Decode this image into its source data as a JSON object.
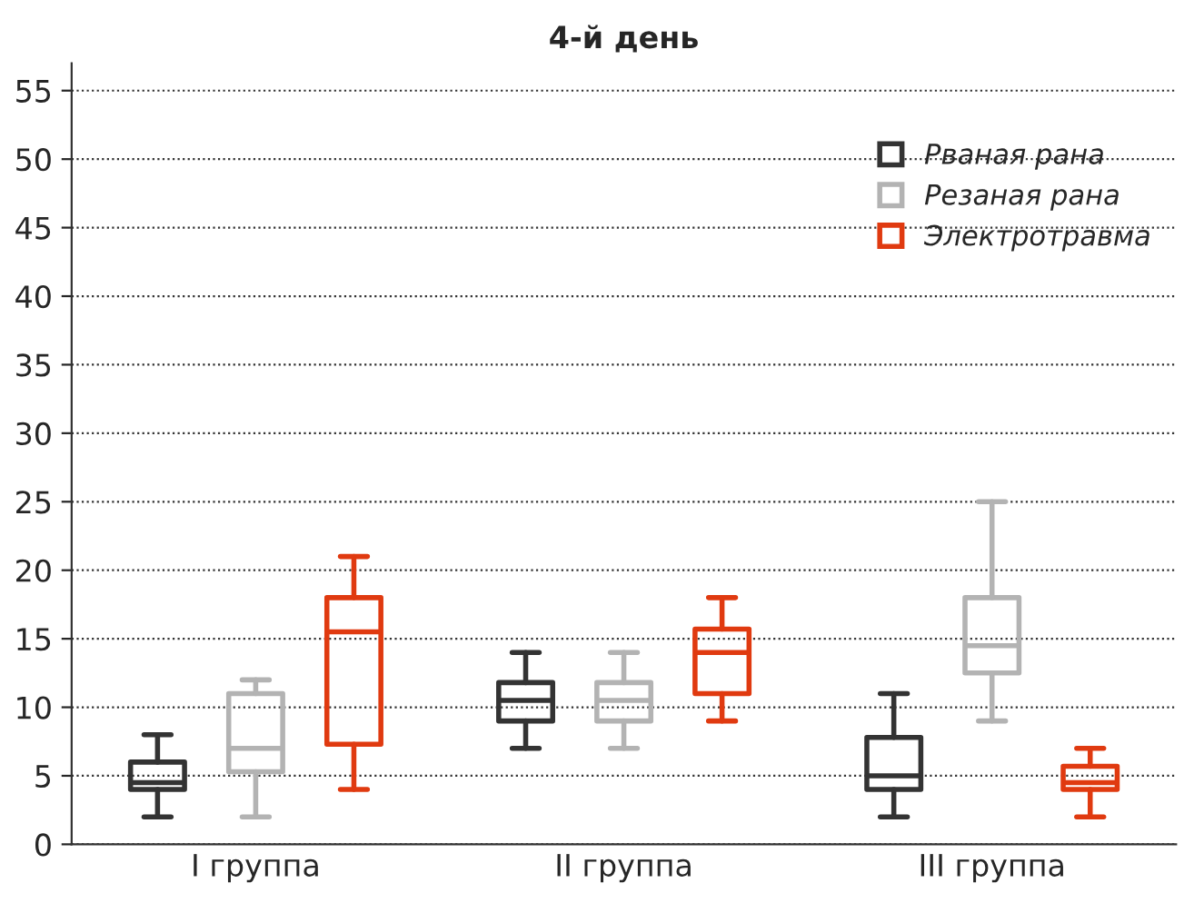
{
  "chart_data": {
    "type": "box",
    "title": "4-й день",
    "categories": [
      "I группа",
      "II группа",
      "III группа"
    ],
    "ylim": [
      0,
      57
    ],
    "yticks": [
      0,
      5,
      10,
      15,
      20,
      25,
      30,
      35,
      40,
      45,
      50,
      55
    ],
    "grid": "y",
    "legend": "top right",
    "series": [
      {
        "name": "Рваная рана",
        "color": "#333333",
        "boxes": [
          {
            "low": 2,
            "q1": 4,
            "median": 4.5,
            "q3": 6,
            "high": 8
          },
          {
            "low": 7,
            "q1": 9,
            "median": 10.5,
            "q3": 11.8,
            "high": 14
          },
          {
            "low": 2,
            "q1": 4,
            "median": 5,
            "q3": 7.8,
            "high": 11
          }
        ]
      },
      {
        "name": "Резаная рана",
        "color": "#b3b3b3",
        "boxes": [
          {
            "low": 2,
            "q1": 5.3,
            "median": 7,
            "q3": 11,
            "high": 12
          },
          {
            "low": 7,
            "q1": 9,
            "median": 10.5,
            "q3": 11.8,
            "high": 14
          },
          {
            "low": 9,
            "q1": 12.5,
            "median": 14.5,
            "q3": 18,
            "high": 25
          }
        ]
      },
      {
        "name": "Электротравма",
        "color": "#e03a10",
        "boxes": [
          {
            "low": 4,
            "q1": 7.3,
            "median": 15.5,
            "q3": 18,
            "high": 21
          },
          {
            "low": 9,
            "q1": 11,
            "median": 14,
            "q3": 15.7,
            "high": 18
          },
          {
            "low": 2,
            "q1": 4,
            "median": 4.5,
            "q3": 5.7,
            "high": 7
          }
        ]
      }
    ]
  }
}
